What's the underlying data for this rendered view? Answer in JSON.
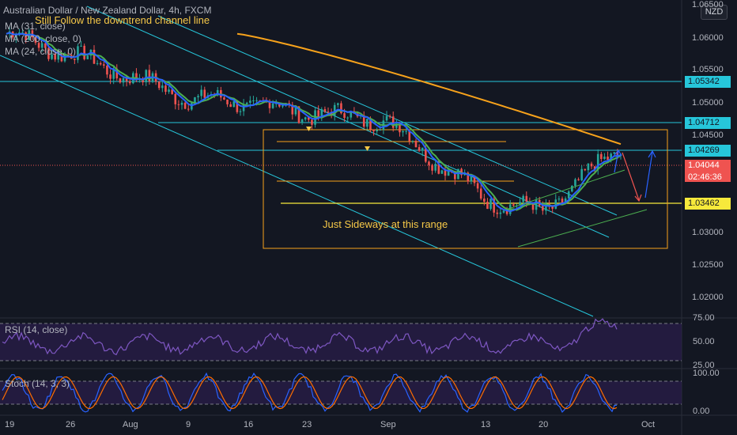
{
  "header": {
    "instrument": "Australian Dollar / New Zealand Dollar, 4h, FXCM",
    "indicators": [
      "MA (31, close)",
      "MA (200, close, 0)",
      "MA (24, close, 0)"
    ]
  },
  "currency_badge": "NZD",
  "annotations": {
    "channel_note": "Still Follow the downtrend channel line",
    "range_note": "Just Sideways at this range"
  },
  "colors": {
    "background": "#131722",
    "ma200": "#f7a21b",
    "ma31": "#2962ff",
    "ma24": "#4caf50",
    "channel": "#26c6da",
    "range_box": "#f7a21b",
    "support_line": "#f7e93b",
    "candle_up": "#26a69a",
    "candle_down": "#ef5350",
    "rsi_line": "#7e57c2",
    "rsi_band": "#2a1e4a",
    "stoch_k": "#2962ff",
    "stoch_d": "#ff6d00"
  },
  "chart_data": [
    {
      "type": "line",
      "title": "Australian Dollar / New Zealand Dollar, 4h, FXCM",
      "x_ticks": [
        "19",
        "26",
        "Aug",
        "9",
        "16",
        "23",
        "Sep",
        "13",
        "20",
        "Oct"
      ],
      "ylim": [
        1.016,
        1.061
      ],
      "y_ticks": [
        "1.06500",
        "1.06000",
        "1.05500",
        "1.05000",
        "1.04500",
        "1.03000",
        "1.02500",
        "1.02000"
      ],
      "series": [
        {
          "x": [
            "19",
            "26",
            "Aug",
            "9",
            "16",
            "23",
            "Sep",
            "13",
            "20"
          ],
          "values": [
            1.057,
            1.054,
            1.051,
            1.0475,
            1.047,
            1.0455,
            1.0445,
            1.033,
            1.031
          ]
        }
      ],
      "horizontal_levels": [
        {
          "value": 1.05342,
          "label": "1.05342",
          "color": "#26c6da"
        },
        {
          "value": 1.04712,
          "label": "1.04712",
          "color": "#26c6da"
        },
        {
          "value": 1.04269,
          "label": "1.04269",
          "color": "#26c6da"
        },
        {
          "value": 1.03462,
          "label": "1.03462",
          "color": "#f7e93b"
        }
      ],
      "current_price": {
        "value": 1.04044,
        "label": "1.04044",
        "countdown": "02:46:36"
      }
    },
    {
      "type": "line",
      "title": "RSI (14, close)",
      "ylim": [
        20,
        80
      ],
      "y_ticks": [
        "75.00",
        "50.00",
        "25.00"
      ],
      "levels": [
        70,
        30
      ]
    },
    {
      "type": "line",
      "title": "Stoch (14, 3, 3)",
      "ylim": [
        0,
        100
      ],
      "y_ticks": [
        "100.00",
        "0.00"
      ],
      "levels": [
        80,
        20
      ]
    }
  ]
}
